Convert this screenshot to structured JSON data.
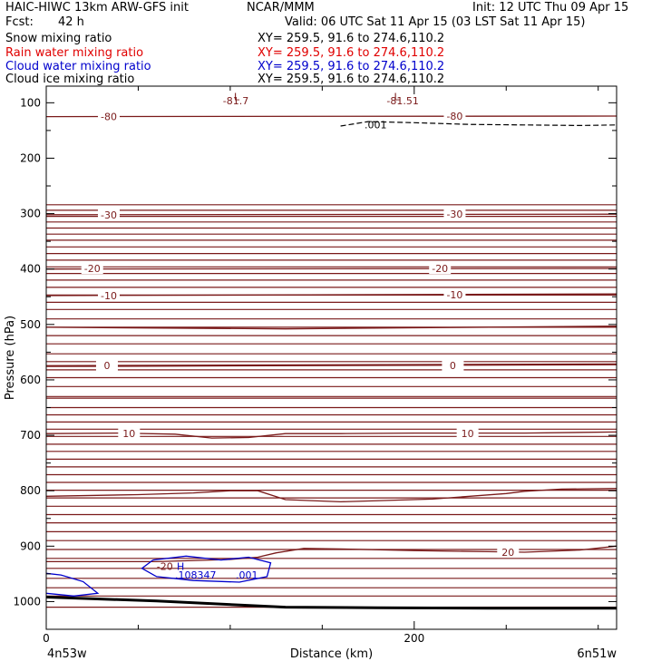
{
  "header": {
    "model": "HAIC-HIWC 13km ARW-GFS init",
    "org": "NCAR/MMM",
    "init": "Init: 12 UTC Thu 09 Apr 15",
    "fcst_label": "Fcst:",
    "fcst_value": "42 h",
    "valid": "Valid: 06 UTC Sat 11 Apr 15 (03 LST Sat 11 Apr 15)"
  },
  "fields": [
    {
      "name": "Snow mixing ratio",
      "xy": "XY= 259.5, 91.6 to 274.6,110.2",
      "color": "#000000"
    },
    {
      "name": "Rain water mixing ratio",
      "xy": "XY= 259.5, 91.6 to 274.6,110.2",
      "color": "#e00000"
    },
    {
      "name": "Cloud water mixing ratio",
      "xy": "XY= 259.5, 91.6 to 274.6,110.2",
      "color": "#0000cc"
    },
    {
      "name": "Cloud ice mixing ratio",
      "xy": "XY= 259.5, 91.6 to 274.6,110.2",
      "color": "#000000"
    }
  ],
  "chart_data": {
    "type": "line",
    "xlabel": "Distance (km)",
    "ylabel": "Pressure (hPa)",
    "xlim": [
      0,
      310
    ],
    "ylim": [
      1050,
      70
    ],
    "x_ticks": [
      0,
      200
    ],
    "x_minor_ticks": [
      50,
      100,
      150,
      250,
      300
    ],
    "y_ticks": [
      100,
      200,
      300,
      400,
      500,
      600,
      700,
      800,
      900,
      1000
    ],
    "left_endpoint": "4n53w",
    "right_endpoint": "6n51w",
    "temperature_color": "#7a1a1a",
    "cloud_water_color": "#0000cc",
    "isotherm_interval_C": 5,
    "isotherms": [
      {
        "points": [
          [
            0,
            1010
          ],
          [
            310,
            1010
          ]
        ],
        "label": "",
        "label_at": []
      },
      {
        "points": [
          [
            0,
            990
          ],
          [
            310,
            990
          ]
        ],
        "label": "",
        "label_at": []
      },
      {
        "points": [
          [
            0,
            975
          ],
          [
            310,
            975
          ]
        ],
        "label": "",
        "label_at": []
      },
      {
        "points": [
          [
            0,
            958
          ],
          [
            310,
            958
          ]
        ],
        "label": "",
        "label_at": []
      },
      {
        "points": [
          [
            0,
            940
          ],
          [
            310,
            940
          ]
        ],
        "label": "",
        "label_at": []
      },
      {
        "points": [
          [
            0,
            922
          ],
          [
            310,
            922
          ]
        ],
        "label": "",
        "label_at": []
      },
      {
        "points": [
          [
            0,
            906
          ],
          [
            310,
            906
          ]
        ],
        "label": "",
        "label_at": []
      },
      {
        "points": [
          [
            0,
            890
          ],
          [
            310,
            890
          ]
        ],
        "label": "",
        "label_at": []
      },
      {
        "points": [
          [
            0,
            874
          ],
          [
            310,
            874
          ]
        ],
        "label": "",
        "label_at": []
      },
      {
        "points": [
          [
            0,
            858
          ],
          [
            310,
            858
          ]
        ],
        "label": "",
        "label_at": []
      },
      {
        "points": [
          [
            0,
            843
          ],
          [
            310,
            843
          ]
        ],
        "label": "",
        "label_at": []
      },
      {
        "points": [
          [
            0,
            828
          ],
          [
            310,
            828
          ]
        ],
        "label": "",
        "label_at": []
      },
      {
        "points": [
          [
            0,
            813
          ],
          [
            310,
            813
          ]
        ],
        "label": "",
        "label_at": []
      },
      {
        "points": [
          [
            0,
            799
          ],
          [
            310,
            799
          ]
        ],
        "label": "",
        "label_at": []
      },
      {
        "points": [
          [
            0,
            785
          ],
          [
            310,
            785
          ]
        ],
        "label": "",
        "label_at": []
      },
      {
        "points": [
          [
            0,
            771
          ],
          [
            310,
            771
          ]
        ],
        "label": "",
        "label_at": []
      },
      {
        "points": [
          [
            0,
            757
          ],
          [
            310,
            757
          ]
        ],
        "label": "",
        "label_at": []
      },
      {
        "points": [
          [
            0,
            743
          ],
          [
            310,
            743
          ]
        ],
        "label": "",
        "label_at": []
      },
      {
        "points": [
          [
            0,
            729
          ],
          [
            310,
            729
          ]
        ],
        "label": "",
        "label_at": []
      },
      {
        "points": [
          [
            0,
            716
          ],
          [
            310,
            716
          ]
        ],
        "label": "",
        "label_at": []
      },
      {
        "points": [
          [
            0,
            702
          ],
          [
            310,
            702
          ]
        ],
        "label": "",
        "label_at": []
      },
      {
        "points": [
          [
            0,
            689
          ],
          [
            310,
            689
          ]
        ],
        "label": "",
        "label_at": []
      },
      {
        "points": [
          [
            0,
            676
          ],
          [
            310,
            676
          ]
        ],
        "label": "",
        "label_at": []
      },
      {
        "points": [
          [
            0,
            663
          ],
          [
            310,
            663
          ]
        ],
        "label": "",
        "label_at": []
      },
      {
        "points": [
          [
            0,
            650
          ],
          [
            310,
            650
          ]
        ],
        "label": "",
        "label_at": []
      },
      {
        "points": [
          [
            0,
            630
          ],
          [
            310,
            630
          ]
        ],
        "label": "",
        "label_at": []
      },
      {
        "points": [
          [
            0,
            612
          ],
          [
            310,
            612
          ]
        ],
        "label": "",
        "label_at": []
      },
      {
        "points": [
          [
            0,
            596
          ],
          [
            310,
            596
          ]
        ],
        "label": "",
        "label_at": []
      },
      {
        "points": [
          [
            0,
            582
          ],
          [
            310,
            582
          ]
        ],
        "label": "",
        "label_at": []
      },
      {
        "points": [
          [
            0,
            567
          ],
          [
            310,
            567
          ]
        ],
        "label": "",
        "label_at": []
      },
      {
        "points": [
          [
            0,
            553
          ],
          [
            310,
            553
          ]
        ],
        "label": "",
        "label_at": []
      },
      {
        "points": [
          [
            0,
            535
          ],
          [
            310,
            535
          ]
        ],
        "label": "",
        "label_at": []
      },
      {
        "points": [
          [
            0,
            520
          ],
          [
            310,
            520
          ]
        ],
        "label": "",
        "label_at": []
      },
      {
        "points": [
          [
            0,
            505
          ],
          [
            310,
            505
          ]
        ],
        "label": "",
        "label_at": []
      },
      {
        "points": [
          [
            0,
            490
          ],
          [
            310,
            490
          ]
        ],
        "label": "",
        "label_at": []
      },
      {
        "points": [
          [
            0,
            473
          ],
          [
            310,
            473
          ]
        ],
        "label": "",
        "label_at": []
      },
      {
        "points": [
          [
            0,
            460
          ],
          [
            310,
            460
          ]
        ],
        "label": "",
        "label_at": []
      },
      {
        "points": [
          [
            0,
            447
          ],
          [
            310,
            447
          ]
        ],
        "label": "",
        "label_at": []
      },
      {
        "points": [
          [
            0,
            433
          ],
          [
            310,
            433
          ]
        ],
        "label": "",
        "label_at": []
      },
      {
        "points": [
          [
            0,
            420
          ],
          [
            310,
            420
          ]
        ],
        "label": "",
        "label_at": []
      },
      {
        "points": [
          [
            0,
            408
          ],
          [
            310,
            408
          ]
        ],
        "label": "",
        "label_at": []
      },
      {
        "points": [
          [
            0,
            396
          ],
          [
            310,
            396
          ]
        ],
        "label": "",
        "label_at": []
      },
      {
        "points": [
          [
            0,
            384
          ],
          [
            310,
            384
          ]
        ],
        "label": "",
        "label_at": []
      },
      {
        "points": [
          [
            0,
            372
          ],
          [
            310,
            372
          ]
        ],
        "label": "",
        "label_at": []
      },
      {
        "points": [
          [
            0,
            360
          ],
          [
            310,
            360
          ]
        ],
        "label": "",
        "label_at": []
      },
      {
        "points": [
          [
            0,
            348
          ],
          [
            310,
            348
          ]
        ],
        "label": "",
        "label_at": []
      },
      {
        "points": [
          [
            0,
            337
          ],
          [
            310,
            337
          ]
        ],
        "label": "",
        "label_at": []
      },
      {
        "points": [
          [
            0,
            326
          ],
          [
            310,
            326
          ]
        ],
        "label": "",
        "label_at": []
      },
      {
        "points": [
          [
            0,
            315
          ],
          [
            310,
            315
          ]
        ],
        "label": "",
        "label_at": []
      },
      {
        "points": [
          [
            0,
            305
          ],
          [
            310,
            305
          ]
        ],
        "label": "",
        "label_at": []
      },
      {
        "points": [
          [
            0,
            294
          ],
          [
            310,
            294
          ]
        ],
        "label": "",
        "label_at": []
      },
      {
        "points": [
          [
            0,
            284
          ],
          [
            310,
            284
          ]
        ],
        "label": "",
        "label_at": []
      }
    ],
    "labeled_isotherms": [
      {
        "value": "20",
        "points": [
          [
            0,
            928
          ],
          [
            60,
            928
          ],
          [
            100,
            924
          ],
          [
            115,
            920
          ],
          [
            125,
            912
          ],
          [
            140,
            904
          ],
          [
            160,
            905
          ],
          [
            200,
            908
          ],
          [
            240,
            910
          ],
          [
            260,
            911
          ],
          [
            290,
            907
          ],
          [
            310,
            900
          ]
        ],
        "label_at": [
          [
            251,
            911
          ]
        ]
      },
      {
        "value": "",
        "points": [
          [
            0,
            810
          ],
          [
            50,
            807
          ],
          [
            80,
            804
          ],
          [
            100,
            800
          ],
          [
            115,
            800
          ],
          [
            130,
            816
          ],
          [
            160,
            820
          ],
          [
            210,
            815
          ],
          [
            250,
            805
          ],
          [
            260,
            801
          ],
          [
            280,
            797
          ],
          [
            310,
            796
          ]
        ],
        "label_at": []
      },
      {
        "value": "10",
        "points": [
          [
            0,
            697
          ],
          [
            40,
            696
          ],
          [
            70,
            698
          ],
          [
            90,
            705
          ],
          [
            110,
            704
          ],
          [
            130,
            697
          ],
          [
            160,
            697
          ],
          [
            200,
            696
          ],
          [
            230,
            696
          ],
          [
            260,
            696
          ],
          [
            310,
            694
          ]
        ],
        "label_at": [
          [
            45,
            697
          ],
          [
            229,
            697
          ]
        ]
      },
      {
        "value": "",
        "points": [
          [
            0,
            633
          ],
          [
            310,
            633
          ]
        ],
        "label": "",
        "label_at": []
      },
      {
        "value": "0",
        "points": [
          [
            0,
            575
          ],
          [
            310,
            572
          ]
        ],
        "label_at": [
          [
            33,
            574
          ],
          [
            221,
            574
          ]
        ]
      },
      {
        "value": "",
        "points": [
          [
            0,
            505
          ],
          [
            130,
            508
          ],
          [
            200,
            506
          ],
          [
            310,
            503
          ]
        ],
        "label_at": []
      },
      {
        "value": "-10",
        "points": [
          [
            0,
            448
          ],
          [
            310,
            445
          ]
        ],
        "label_at": [
          [
            34,
            448
          ],
          [
            222,
            446
          ]
        ]
      },
      {
        "value": "-20",
        "points": [
          [
            0,
            400
          ],
          [
            310,
            399
          ]
        ],
        "label_at": [
          [
            25,
            399
          ],
          [
            214,
            399
          ]
        ]
      },
      {
        "value": "-30",
        "points": [
          [
            0,
            302
          ],
          [
            310,
            301
          ]
        ],
        "label_at": [
          [
            34,
            302
          ],
          [
            222,
            301
          ]
        ]
      },
      {
        "value": "-80",
        "points": [
          [
            0,
            125
          ],
          [
            310,
            124
          ]
        ],
        "label_at": [
          [
            34,
            125
          ],
          [
            222,
            124
          ]
        ]
      }
    ],
    "annotations": [
      {
        "text": "L",
        "x": 102,
        "y": 95,
        "color": "#7a1a1a"
      },
      {
        "text": "-81.7",
        "x": 96,
        "y": 103,
        "color": "#7a1a1a"
      },
      {
        "text": "L",
        "x": 189,
        "y": 95,
        "color": "#7a1a1a"
      },
      {
        "text": "-81.51",
        "x": 185,
        "y": 103,
        "color": "#7a1a1a"
      },
      {
        "text": ".001",
        "x": 173,
        "y": 146,
        "color": "#000000"
      },
      {
        "text": "-20",
        "x": 60,
        "y": 943,
        "color": "#7a1a1a"
      },
      {
        "text": "H",
        "x": 71,
        "y": 943,
        "color": "#0000cc"
      },
      {
        "text": ".108347",
        "x": 70,
        "y": 958,
        "color": "#0000cc"
      },
      {
        "text": ".001",
        "x": 103,
        "y": 958,
        "color": "#0000cc"
      }
    ],
    "cloud_ice_contour": {
      "value": ".001",
      "points": [
        [
          160,
          142
        ],
        [
          175,
          134
        ],
        [
          200,
          136
        ],
        [
          230,
          139
        ],
        [
          260,
          140
        ],
        [
          290,
          141
        ],
        [
          310,
          140
        ]
      ]
    },
    "cloud_water_contours": [
      {
        "value": ".001",
        "points": [
          [
            0,
            949
          ],
          [
            8,
            952
          ],
          [
            20,
            964
          ],
          [
            28,
            985
          ],
          [
            15,
            990
          ],
          [
            0,
            985
          ]
        ]
      },
      {
        "value": ".001",
        "points": [
          [
            58,
            925
          ],
          [
            76,
            918
          ],
          [
            95,
            925
          ],
          [
            110,
            920
          ],
          [
            122,
            930
          ],
          [
            120,
            955
          ],
          [
            105,
            965
          ],
          [
            80,
            962
          ],
          [
            60,
            955
          ],
          [
            52,
            940
          ],
          [
            58,
            925
          ]
        ]
      }
    ],
    "terrain": {
      "points": [
        [
          0,
          992
        ],
        [
          60,
          999
        ],
        [
          130,
          1010
        ],
        [
          180,
          1011
        ],
        [
          240,
          1012
        ],
        [
          310,
          1012
        ]
      ]
    }
  }
}
